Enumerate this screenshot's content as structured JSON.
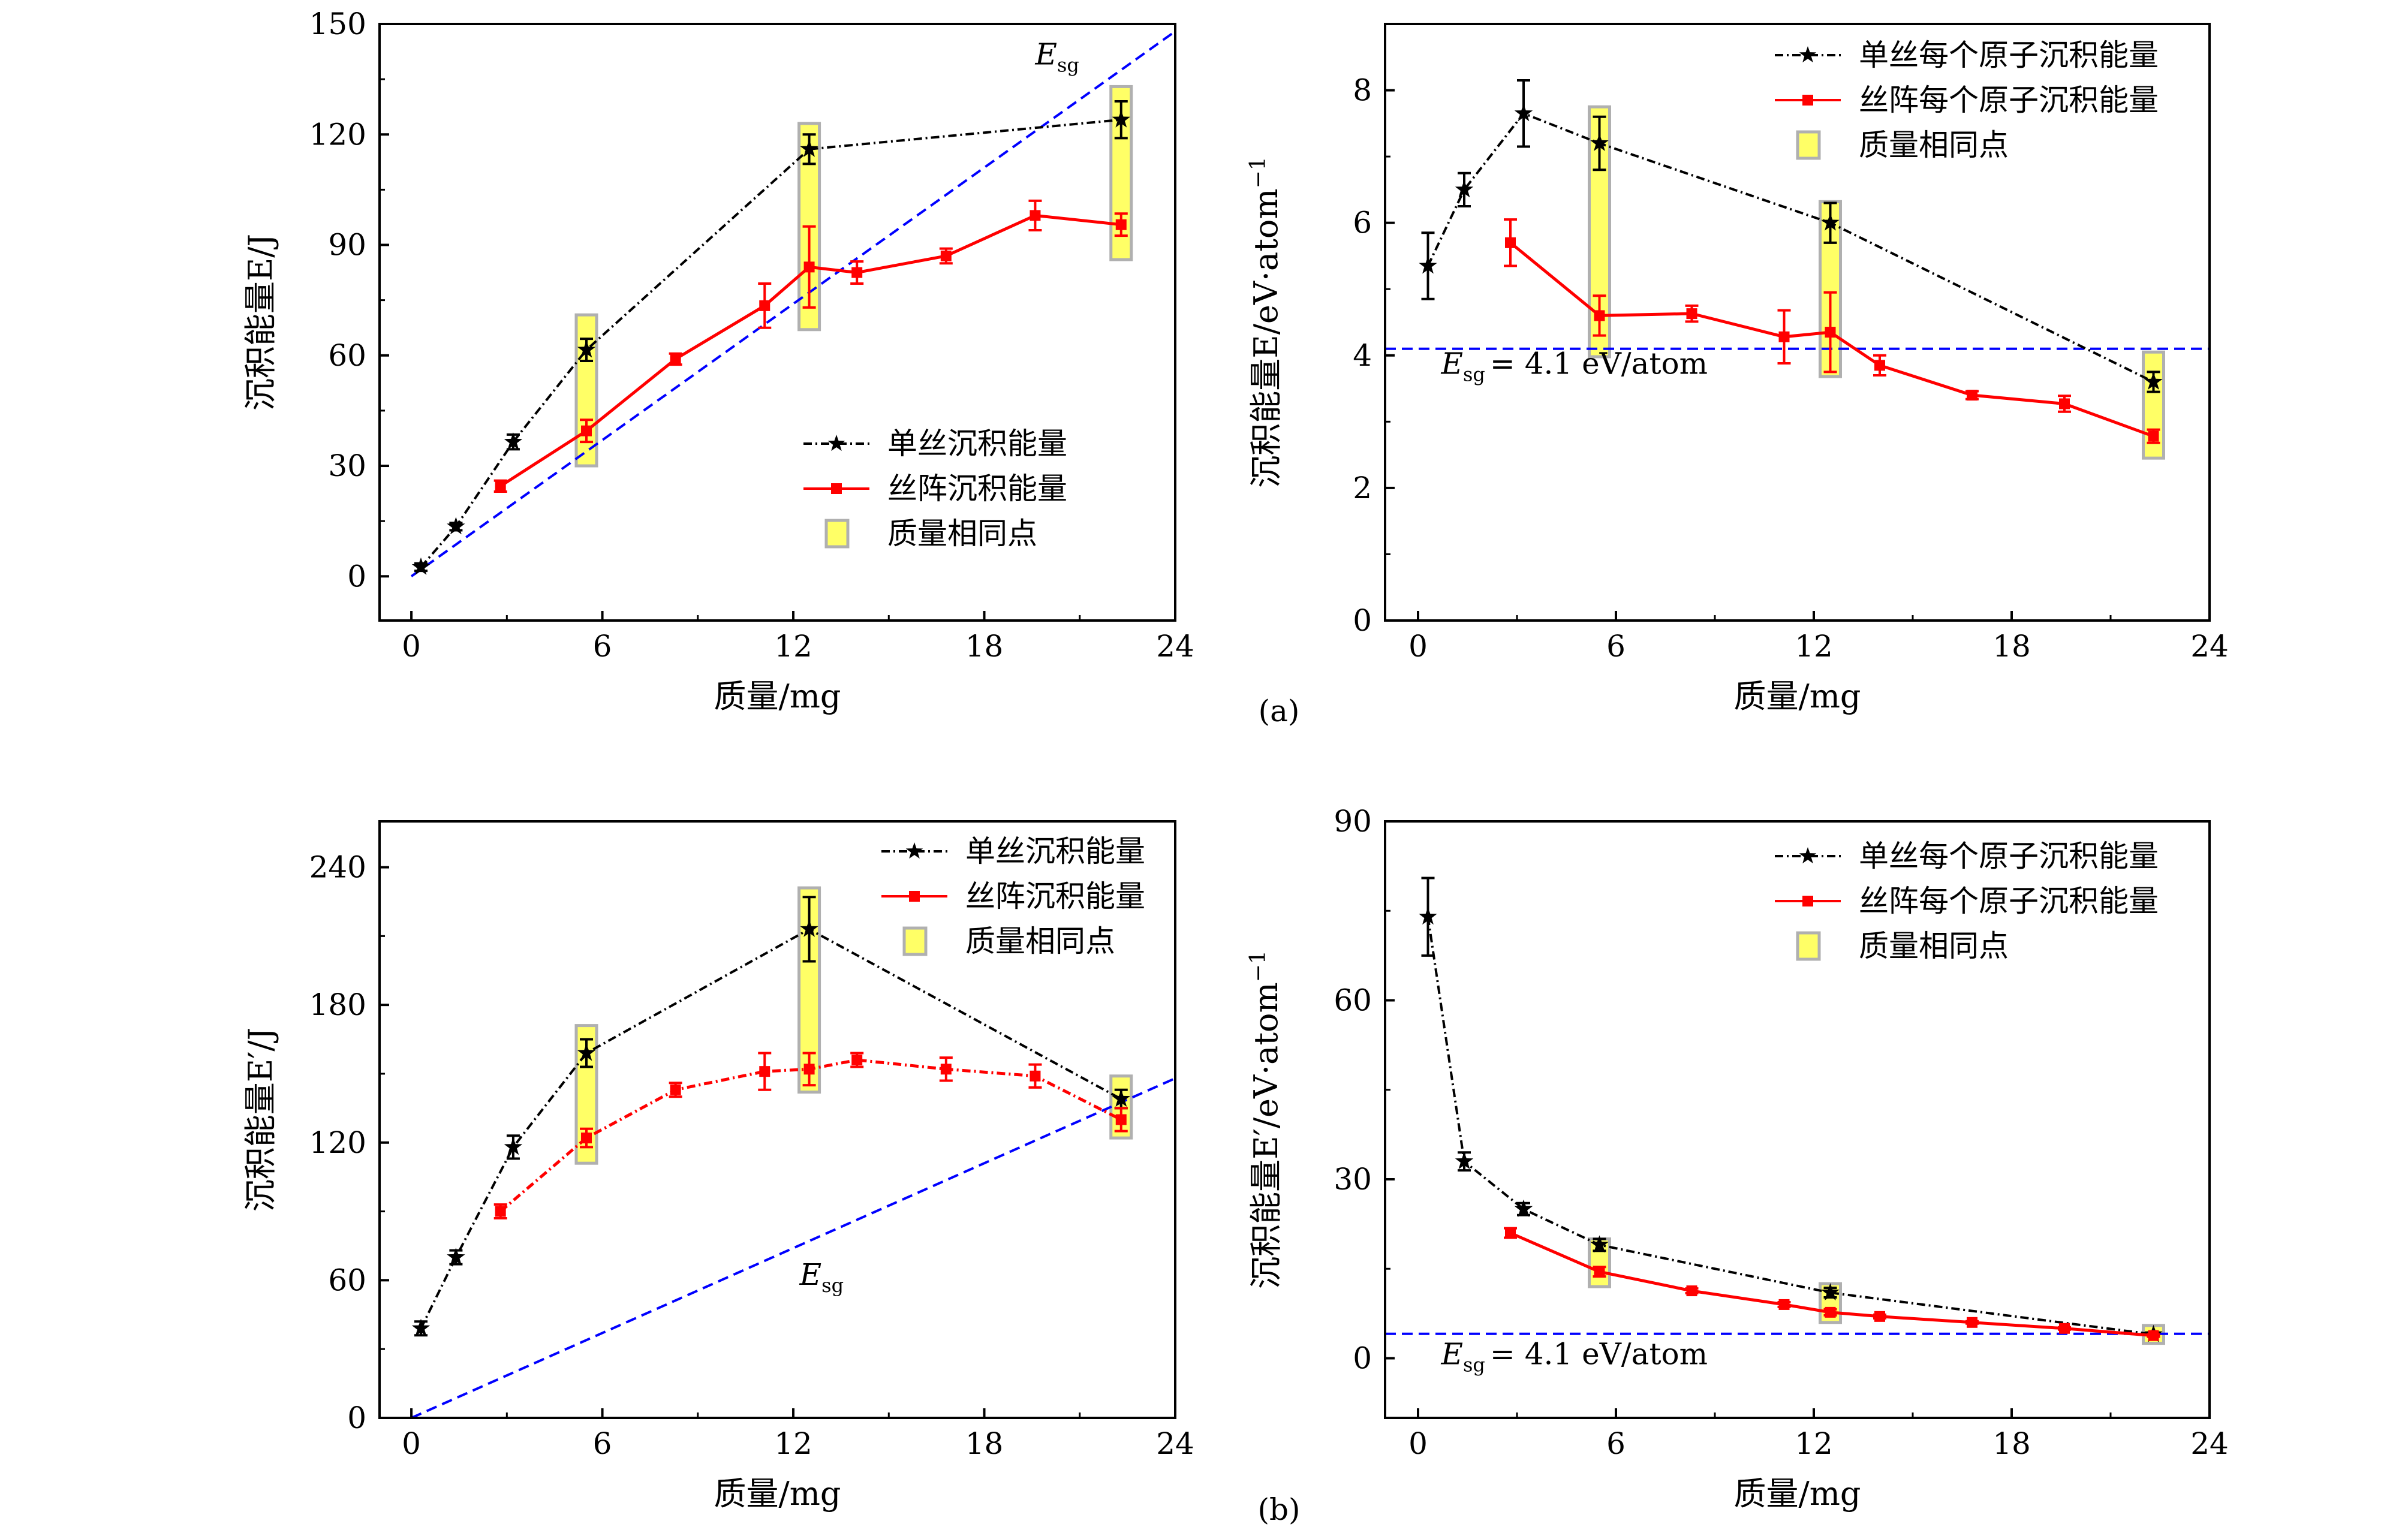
{
  "figure": {
    "caption_a": "(a)",
    "caption_b": "(b)"
  },
  "colors": {
    "single": "#000000",
    "array": "#ff0000",
    "esg": "#0000ff",
    "highlight_fill": "#ffff66",
    "highlight_edge": "#b0b0b0"
  },
  "chart_data": [
    {
      "type": "line",
      "panel": "a-left",
      "xlabel": "质量/mg",
      "ylabel": "沉积能量E/J",
      "xlim": [
        -1,
        24
      ],
      "ylim": [
        -12,
        150
      ],
      "xticks": [
        0,
        6,
        12,
        18,
        24
      ],
      "yticks": [
        0,
        30,
        60,
        90,
        120,
        150
      ],
      "legend_position": "bottom-right",
      "legend": [
        {
          "label": "单丝沉积能量",
          "kind": "single"
        },
        {
          "label": "丝阵沉积能量",
          "kind": "array"
        },
        {
          "label": "质量相同点",
          "kind": "box"
        }
      ],
      "series": [
        {
          "name": "单丝沉积能量",
          "kind": "single",
          "dash": "14,6,3,6",
          "x": [
            0.3,
            1.4,
            3.2,
            5.5,
            12.5,
            22.3
          ],
          "y": [
            2.5,
            13.5,
            36.5,
            61.5,
            116,
            124
          ],
          "err": [
            1,
            1,
            2,
            3,
            4,
            5
          ]
        },
        {
          "name": "丝阵沉积能量",
          "kind": "array",
          "dash": "",
          "x": [
            2.8,
            5.5,
            8.3,
            11.1,
            12.5,
            14.0,
            16.8,
            19.6,
            22.3
          ],
          "y": [
            24.5,
            39.5,
            59,
            73.5,
            84,
            82.5,
            87,
            98,
            95.5
          ],
          "err": [
            1.5,
            3,
            1.5,
            6,
            11,
            3,
            2,
            4,
            3
          ]
        }
      ],
      "boxes": [
        {
          "x": 5.5,
          "y": [
            30,
            71
          ]
        },
        {
          "x": 12.5,
          "y": [
            67,
            123
          ]
        },
        {
          "x": 22.3,
          "y": [
            86,
            133
          ]
        }
      ],
      "esg_line": {
        "points": [
          [
            0,
            0
          ],
          [
            24,
            148
          ]
        ],
        "label": "E",
        "label_sub": "sg",
        "label_at": [
          19.6,
          139
        ]
      }
    },
    {
      "type": "line",
      "panel": "a-right",
      "xlabel": "质量/mg",
      "ylabel": "沉积能量E/eV·atom",
      "ylabel_sup": "−1",
      "xlim": [
        -1,
        24
      ],
      "ylim": [
        0,
        9
      ],
      "xticks": [
        0,
        6,
        12,
        18,
        24
      ],
      "yticks": [
        0,
        2,
        4,
        6,
        8
      ],
      "legend_position": "top-right",
      "legend": [
        {
          "label": "单丝每个原子沉积能量",
          "kind": "single"
        },
        {
          "label": "丝阵每个原子沉积能量",
          "kind": "array"
        },
        {
          "label": "质量相同点",
          "kind": "box"
        }
      ],
      "series": [
        {
          "name": "单丝每个原子沉积能量",
          "kind": "single",
          "dash": "14,6,3,6",
          "x": [
            0.3,
            1.4,
            3.2,
            5.5,
            12.5,
            22.3
          ],
          "y": [
            5.35,
            6.5,
            7.65,
            7.2,
            6.0,
            3.6
          ],
          "err": [
            0.5,
            0.25,
            0.5,
            0.4,
            0.3,
            0.15
          ]
        },
        {
          "name": "丝阵每个原子沉积能量",
          "kind": "array",
          "dash": "",
          "x": [
            2.8,
            5.5,
            8.3,
            11.1,
            12.5,
            14.0,
            16.8,
            19.6,
            22.3
          ],
          "y": [
            5.7,
            4.6,
            4.63,
            4.28,
            4.35,
            3.85,
            3.4,
            3.27,
            2.78
          ],
          "err": [
            0.35,
            0.3,
            0.12,
            0.4,
            0.6,
            0.15,
            0.06,
            0.12,
            0.1
          ]
        }
      ],
      "boxes": [
        {
          "x": 5.5,
          "y": [
            3.98,
            7.75
          ]
        },
        {
          "x": 12.5,
          "y": [
            3.68,
            6.32
          ]
        },
        {
          "x": 22.3,
          "y": [
            2.45,
            4.05
          ]
        }
      ],
      "esg_hline": {
        "y": 4.1,
        "label_left": "E",
        "label_sub": "sg",
        "label_right": "= 4.1 eV/atom",
        "label_at": [
          0.7,
          3.72
        ]
      }
    },
    {
      "type": "line",
      "panel": "b-left",
      "xlabel": "质量/mg",
      "ylabel": "沉积能量E′/J",
      "xlim": [
        -1,
        24
      ],
      "ylim": [
        0,
        260
      ],
      "xticks": [
        0,
        6,
        12,
        18,
        24
      ],
      "yticks": [
        0,
        60,
        120,
        180,
        240
      ],
      "legend_position": "top-right",
      "legend": [
        {
          "label": "单丝沉积能量",
          "kind": "single"
        },
        {
          "label": "丝阵沉积能量",
          "kind": "array"
        },
        {
          "label": "质量相同点",
          "kind": "box"
        }
      ],
      "series": [
        {
          "name": "单丝沉积能量",
          "kind": "single",
          "dash": "14,6,3,6",
          "x": [
            0.3,
            1.4,
            3.2,
            5.5,
            12.5,
            22.3
          ],
          "y": [
            39,
            70,
            118,
            159,
            213,
            139
          ],
          "err": [
            3,
            3,
            5,
            6,
            14,
            4
          ]
        },
        {
          "name": "丝阵沉积能量",
          "kind": "array",
          "dash": "14,6,3,6",
          "x": [
            2.8,
            5.5,
            8.3,
            11.1,
            12.5,
            14.0,
            16.8,
            19.6,
            22.3
          ],
          "y": [
            90,
            122,
            143,
            151,
            152,
            156,
            152,
            149,
            130
          ],
          "err": [
            3,
            4,
            3,
            8,
            7,
            3,
            5,
            5,
            5
          ]
        }
      ],
      "boxes": [
        {
          "x": 5.5,
          "y": [
            111,
            171
          ]
        },
        {
          "x": 12.5,
          "y": [
            142,
            231
          ]
        },
        {
          "x": 22.3,
          "y": [
            122,
            149
          ]
        }
      ],
      "esg_line": {
        "points": [
          [
            0,
            0
          ],
          [
            24,
            148
          ]
        ],
        "label": "E",
        "label_sub": "sg",
        "label_at": [
          12.2,
          58
        ]
      }
    },
    {
      "type": "line",
      "panel": "b-right",
      "xlabel": "质量/mg",
      "ylabel": "沉积能量E′/eV·atom",
      "ylabel_sup": "−1",
      "xlim": [
        -1,
        24
      ],
      "ylim": [
        -10,
        90
      ],
      "xticks": [
        0,
        6,
        12,
        18,
        24
      ],
      "yticks": [
        0,
        30,
        60,
        90
      ],
      "legend_position": "top-right",
      "legend": [
        {
          "label": "单丝每个原子沉积能量",
          "kind": "single"
        },
        {
          "label": "丝阵每个原子沉积能量",
          "kind": "array"
        },
        {
          "label": "质量相同点",
          "kind": "box"
        }
      ],
      "series": [
        {
          "name": "单丝每个原子沉积能量",
          "kind": "single",
          "dash": "14,6,3,6",
          "x": [
            0.3,
            1.4,
            3.2,
            5.5,
            12.5,
            22.3
          ],
          "y": [
            74,
            33,
            25,
            19,
            11,
            4
          ],
          "err": [
            6.5,
            1.5,
            1,
            1,
            0.8,
            0.3
          ]
        },
        {
          "name": "丝阵每个原子沉积能量",
          "kind": "array",
          "dash": "",
          "x": [
            2.8,
            5.5,
            8.3,
            11.1,
            12.5,
            14.0,
            16.8,
            19.6,
            22.3
          ],
          "y": [
            21,
            14.5,
            11.3,
            9,
            7.7,
            7,
            6,
            5,
            3.8
          ],
          "err": [
            0.8,
            0.8,
            0.4,
            0.4,
            0.5,
            0.3,
            0.2,
            0.2,
            0.2
          ]
        }
      ],
      "boxes": [
        {
          "x": 5.5,
          "y": [
            12,
            20
          ]
        },
        {
          "x": 12.5,
          "y": [
            6,
            12.5
          ]
        },
        {
          "x": 22.3,
          "y": [
            2.5,
            5.5
          ]
        }
      ],
      "esg_hline": {
        "y": 4.1,
        "label_left": "E",
        "label_sub": "sg",
        "label_right": "= 4.1 eV/atom",
        "label_at": [
          0.7,
          -1
        ]
      }
    }
  ]
}
